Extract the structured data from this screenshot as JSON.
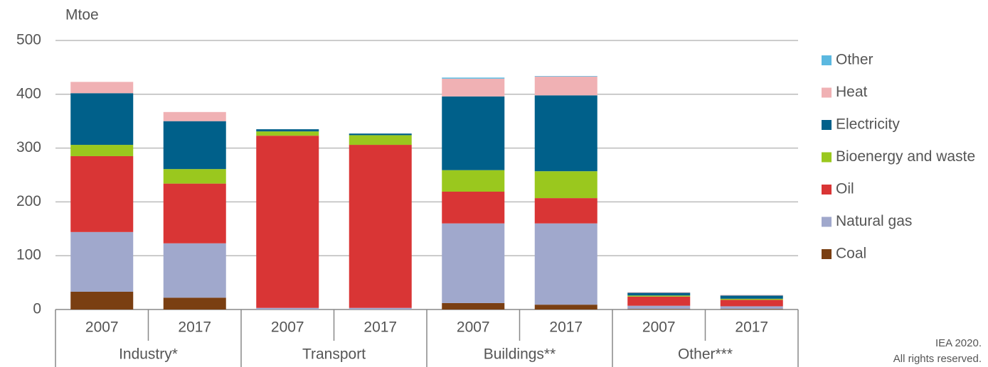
{
  "chart_data": {
    "type": "stacked_bar",
    "y_label": "Mtoe",
    "categories": [
      "2007",
      "2017",
      "2007",
      "2017",
      "2007",
      "2017",
      "2007",
      "2017"
    ],
    "groups": [
      "Industry*",
      "Transport",
      "Buildings**",
      "Other***"
    ],
    "series": [
      {
        "name": "Coal",
        "color": "#7a3f12",
        "values": [
          33,
          22,
          0,
          0,
          12,
          9,
          1,
          1
        ]
      },
      {
        "name": "Natural gas",
        "color": "#a0a8cc",
        "values": [
          111,
          101,
          3,
          3,
          148,
          151,
          6,
          5
        ]
      },
      {
        "name": "Oil",
        "color": "#d93535",
        "values": [
          141,
          111,
          320,
          303,
          59,
          47,
          17,
          12
        ]
      },
      {
        "name": "Bioenergy and waste",
        "color": "#9ac81e",
        "values": [
          21,
          27,
          8,
          18,
          40,
          50,
          2,
          2
        ]
      },
      {
        "name": "Electricity",
        "color": "#00608a",
        "values": [
          96,
          89,
          4,
          3,
          137,
          141,
          5,
          6
        ]
      },
      {
        "name": "Heat",
        "color": "#f0b1b4",
        "values": [
          21,
          17,
          0,
          0,
          33,
          35,
          1,
          1
        ]
      },
      {
        "name": "Other",
        "color": "#5bb8e0",
        "values": [
          0,
          0,
          0,
          0,
          2,
          1,
          0,
          0
        ]
      }
    ],
    "ylim": [
      0,
      500
    ],
    "yticks": [
      0,
      100,
      200,
      300,
      400,
      500
    ],
    "grid": true,
    "legend": "right",
    "source": [
      "IEA 2020.",
      "All rights reserved."
    ]
  }
}
